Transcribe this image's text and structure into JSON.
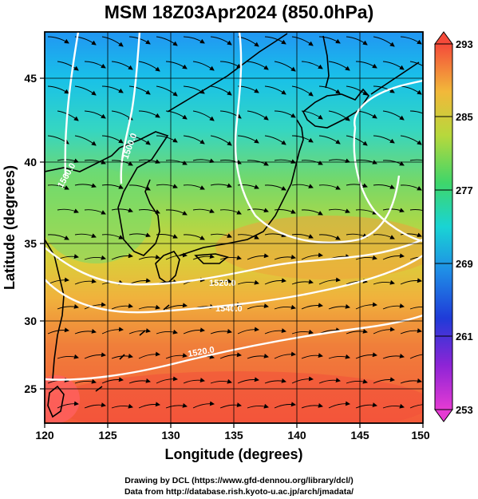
{
  "title": "MSM 18Z03Apr2024 (850.0hPa)",
  "map": {
    "xaxis": {
      "label": "Longitude (degrees)",
      "range": [
        120,
        150
      ],
      "ticks": [
        "120",
        "125",
        "130",
        "135",
        "140",
        "145",
        "150"
      ]
    },
    "yaxis": {
      "label": "Latitude  (degrees)",
      "range": [
        22.4,
        47.6
      ],
      "ticks": [
        "25",
        "30",
        "35",
        "40",
        "45"
      ]
    },
    "grid": true,
    "contour_labels": [
      "1560.0",
      "1500.0",
      "1520.0",
      "1540.0",
      "1520.0"
    ],
    "colorbar": {
      "ticks": [
        "293",
        "285",
        "277",
        "269",
        "261",
        "253"
      ],
      "range": [
        253,
        293
      ]
    }
  },
  "credits": {
    "line1": "Drawing by DCL (https://www.gfd-dennou.org/library/dcl/)",
    "line2": "Data from http://database.rish.kyoto-u.ac.jp/arch/jmadata/"
  }
}
